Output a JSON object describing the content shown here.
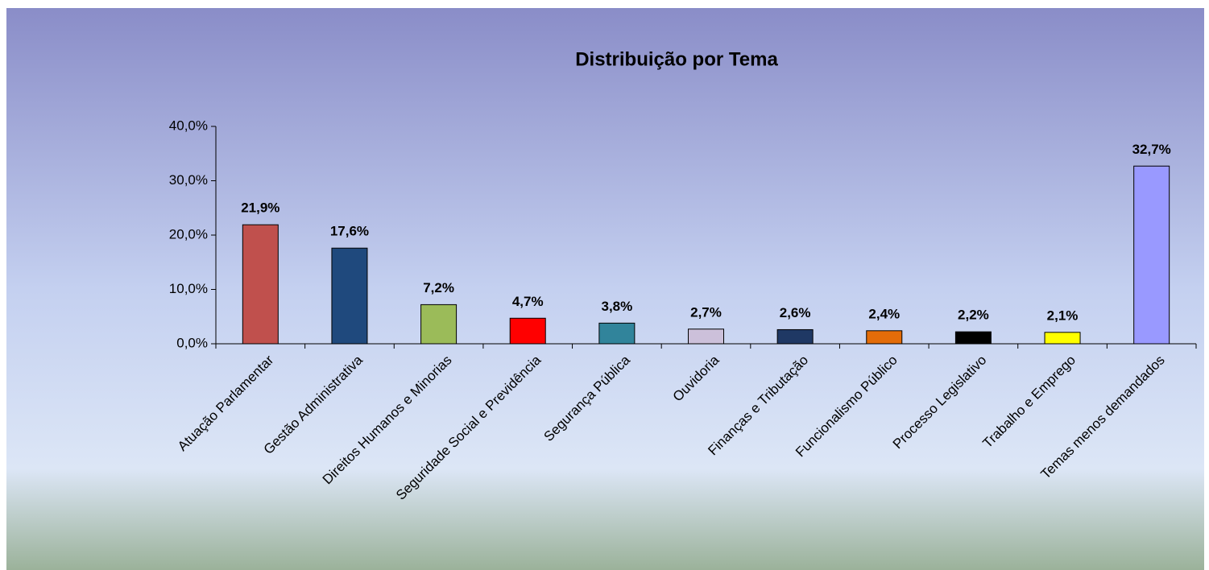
{
  "chart_data": {
    "type": "bar",
    "title": "Distribuição por Tema",
    "categories": [
      "Atuação Parlamentar",
      "Gestão Administrativa",
      "Direitos Humanos e Minorias",
      "Seguridade Social e Previdência",
      "Segurança Pública",
      "Ouvidoria",
      "Finanças e Tributação",
      "Funcionalismo Público",
      "Processo Legislativo",
      "Trabalho e Emprego",
      "Temas menos demandados"
    ],
    "values": [
      21.9,
      17.6,
      7.2,
      4.7,
      3.8,
      2.7,
      2.6,
      2.4,
      2.2,
      2.1,
      32.7
    ],
    "value_labels": [
      "21,9%",
      "17,6%",
      "7,2%",
      "4,7%",
      "3,8%",
      "2,7%",
      "2,6%",
      "2,4%",
      "2,2%",
      "2,1%",
      "32,7%"
    ],
    "colors": [
      "#c0504d",
      "#1f497d",
      "#9bbb59",
      "#ff0000",
      "#31849b",
      "#ccc0da",
      "#1f3864",
      "#e36c09",
      "#000000",
      "#ffff00",
      "#9999ff"
    ],
    "ylim": [
      0,
      40
    ],
    "yticks": [
      {
        "value": 0,
        "label": "0,0%"
      },
      {
        "value": 10,
        "label": "10,0%"
      },
      {
        "value": 20,
        "label": "20,0%"
      },
      {
        "value": 30,
        "label": "30,0%"
      },
      {
        "value": 40,
        "label": "40,0%"
      }
    ]
  }
}
